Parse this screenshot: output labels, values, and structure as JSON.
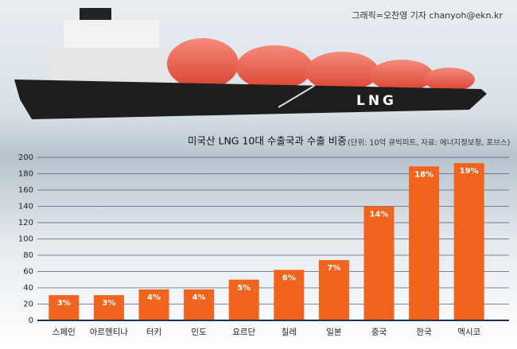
{
  "chart_data": {
    "type": "bar",
    "title": "미국산 LNG 10대 수출국과 수출 비중",
    "subtitle": "(단위: 10억 큐빅피트, 자료: 에너지정보청, 포브스)",
    "credit": "그래픽=오찬영 기자 chanyoh@ekn.kr",
    "ship_label": "LNG",
    "categories": [
      "스페인",
      "아르헨티나",
      "터키",
      "인도",
      "요르단",
      "칠레",
      "일본",
      "중국",
      "한국",
      "멕시코"
    ],
    "values": [
      31,
      31,
      38,
      38,
      50,
      62,
      74,
      140,
      189,
      193
    ],
    "share_labels": [
      "3%",
      "3%",
      "4%",
      "4%",
      "5%",
      "6%",
      "7%",
      "14%",
      "18%",
      "19%"
    ],
    "color": "#f0641e",
    "ylim": [
      0,
      200
    ],
    "yticks": [
      0,
      20,
      40,
      60,
      80,
      100,
      120,
      140,
      160,
      180,
      200
    ],
    "grid": true
  }
}
